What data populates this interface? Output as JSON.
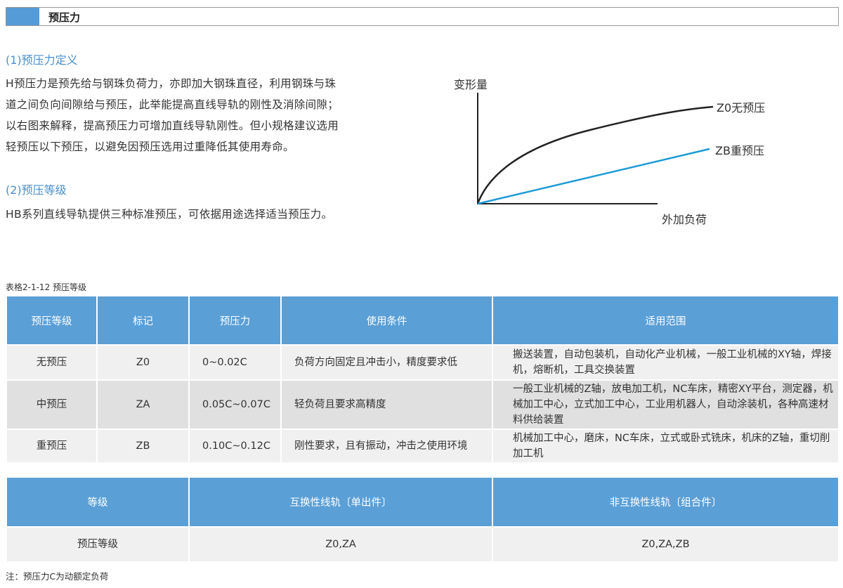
{
  "header": {
    "title": "预压力",
    "accent": "#559bd7"
  },
  "section1": {
    "heading": "(1)预压力定义",
    "lines": [
      "H预压力是预先给与钢珠负荷力，亦即加大钢珠直径，利用钢珠与珠",
      "道之间负向间隙给与预压，此举能提高直线导轨的刚性及消除间隙；",
      "以右图来解释，提高预压力可增加直线导轨刚性。但小规格建议选用",
      "轻预压以下预压，以避免因预压选用过重降低其使用寿命。"
    ]
  },
  "section2": {
    "heading": "(2)预压等级",
    "text": "HB系列直线导轨提供三种标准预压，可依据用途选择适当预压力。"
  },
  "diagram": {
    "y_label": "变形量",
    "x_label": "外加负荷",
    "curves": [
      {
        "label": "Z0无预压",
        "color": "#222222"
      },
      {
        "label": "ZB重预压",
        "color": "#1e9ad6"
      }
    ]
  },
  "table1": {
    "caption": "表格2-1-12  预压等级",
    "headers": [
      "预压等级",
      "标记",
      "预压力",
      "使用条件",
      "适用范围"
    ],
    "rows": [
      [
        "无预压",
        "Z0",
        "0~0.02C",
        "负荷方向固定且冲击小，精度要求低",
        "搬送装置，自动包装机，自动化产业机械，一般工业机械的XY轴，焊接机，熔断机，工具交换装置"
      ],
      [
        "中预压",
        "ZA",
        "0.05C~0.07C",
        "轻负荷且要求高精度",
        "一般工业机械的Z轴，放电加工机，NC车床，精密XY平台，测定器，机械加工中心，立式加工中心，工业用机器人，自动涂装机，各种高速材料供给装置"
      ],
      [
        "重预压",
        "ZB",
        "0.10C~0.12C",
        "刚性要求，且有振动，冲击之使用环境",
        "机械加工中心，磨床，NC车床，立式或卧式铣床，机床的Z轴，重切削加工机"
      ]
    ]
  },
  "table2": {
    "headers": [
      "等级",
      "互换性线轨〔单出件〕",
      "非互换性线轨〔组合件〕"
    ],
    "rows": [
      [
        "预压等级",
        "Z0,ZA",
        "Z0,ZA,ZB"
      ]
    ]
  },
  "note": "注：预压力C为动额定负荷"
}
